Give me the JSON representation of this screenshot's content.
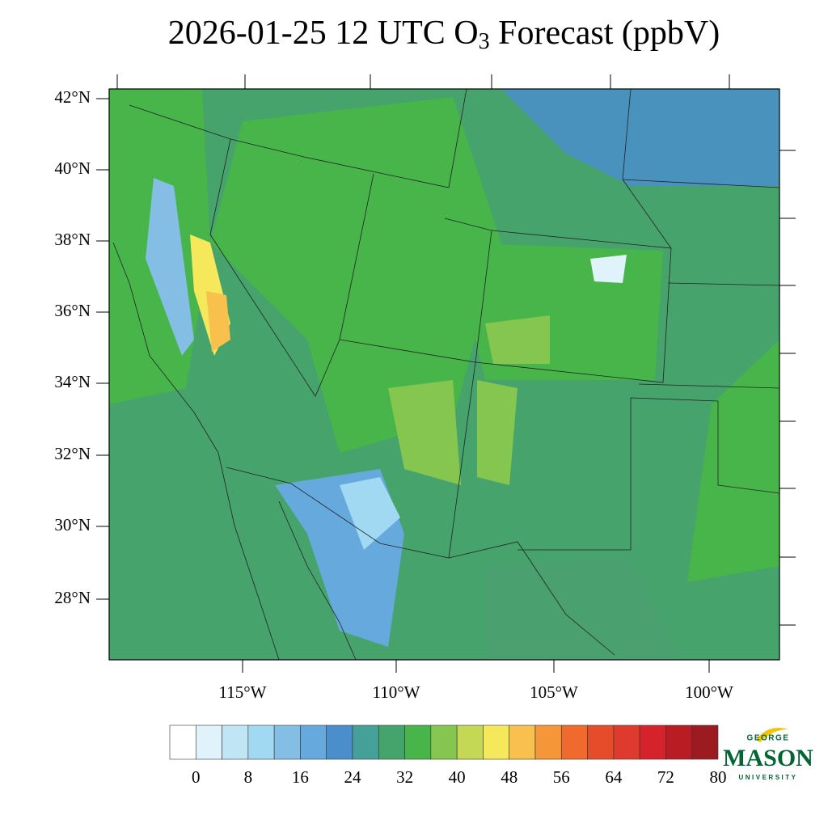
{
  "title": {
    "prefix": "2026-01-25 12 UTC O",
    "subscript": "3",
    "suffix": " Forecast (ppbV)"
  },
  "lat_labels": [
    "42°N",
    "40°N",
    "38°N",
    "36°N",
    "34°N",
    "32°N",
    "30°N",
    "28°N"
  ],
  "lon_labels": [
    "115°W",
    "110°W",
    "105°W",
    "100°W"
  ],
  "colorbar": {
    "colors": [
      "#ffffff",
      "#e1f3fa",
      "#c0e6f6",
      "#a2d9f2",
      "#84bee4",
      "#66a9dc",
      "#4a8fcb",
      "#46a09a",
      "#44a46c",
      "#47b54a",
      "#84c64f",
      "#c4d856",
      "#f6e85b",
      "#f8c04c",
      "#f59638",
      "#ef6a2c",
      "#e54c29",
      "#de3a2e",
      "#d4232b",
      "#ba1c24",
      "#9b1b20"
    ],
    "labels": [
      0,
      8,
      16,
      24,
      32,
      40,
      48,
      56,
      64,
      72,
      80
    ]
  },
  "logo": {
    "top": "GEORGE",
    "name": "MASON",
    "bottom": "UNIVERSITY"
  }
}
